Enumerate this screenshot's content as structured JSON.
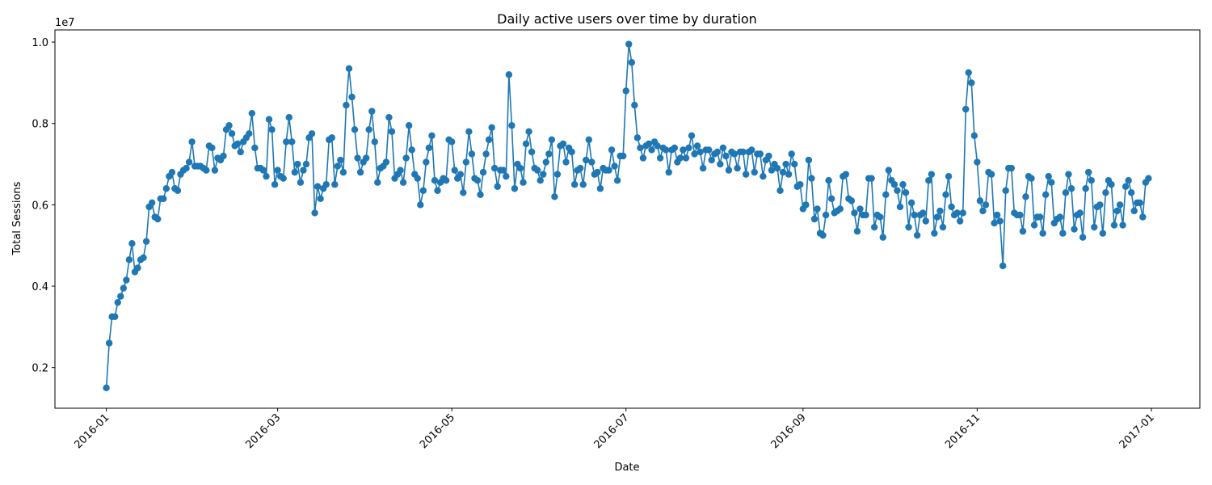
{
  "chart_data": {
    "type": "line",
    "title": "Daily active users over time by duration",
    "xlabel": "Date",
    "ylabel": "Total Sessions",
    "y_offset_text": "1e7",
    "y_scale_exponent": 7,
    "xlim": [
      "2015-12-14",
      "2017-01-18"
    ],
    "ylim": [
      1.0,
      10.3
    ],
    "x_ticks": [
      "2016-01",
      "2016-03",
      "2016-05",
      "2016-07",
      "2016-09",
      "2016-11",
      "2017-01"
    ],
    "x_tick_dates": [
      "2016-01-01",
      "2016-03-01",
      "2016-05-01",
      "2016-07-01",
      "2016-09-01",
      "2016-11-01",
      "2017-01-01"
    ],
    "y_ticks": [
      "0.2",
      "0.4",
      "0.6",
      "0.8",
      "1.0"
    ],
    "grid": false,
    "legend": false,
    "marker": "circle",
    "color": "#1f77b4",
    "series": [
      {
        "start_date": "2016-01-01",
        "step_days": 1,
        "values": [
          1.5,
          2.6,
          3.25,
          3.25,
          3.6,
          3.75,
          3.95,
          4.15,
          4.65,
          5.05,
          4.35,
          4.45,
          4.65,
          4.7,
          5.1,
          5.95,
          6.05,
          5.7,
          5.65,
          6.15,
          6.15,
          6.4,
          6.7,
          6.8,
          6.4,
          6.35,
          6.75,
          6.85,
          6.9,
          7.05,
          7.55,
          6.95,
          6.95,
          6.95,
          6.9,
          6.85,
          7.45,
          7.4,
          6.85,
          7.15,
          7.1,
          7.2,
          7.85,
          7.95,
          7.75,
          7.45,
          7.5,
          7.3,
          7.55,
          7.65,
          7.75,
          8.25,
          7.4,
          6.9,
          6.9,
          6.85,
          6.7,
          8.1,
          7.85,
          6.5,
          6.85,
          6.7,
          6.65,
          7.55,
          8.15,
          7.55,
          6.8,
          7.0,
          6.55,
          6.85,
          7.0,
          7.65,
          7.75,
          5.8,
          6.45,
          6.15,
          6.4,
          6.5,
          7.6,
          7.65,
          6.5,
          6.95,
          7.1,
          6.8,
          8.45,
          9.35,
          8.65,
          7.85,
          7.15,
          6.8,
          7.05,
          7.15,
          7.85,
          8.3,
          7.55,
          6.55,
          6.9,
          6.95,
          7.05,
          8.15,
          7.8,
          6.65,
          6.75,
          6.85,
          6.55,
          7.15,
          7.95,
          7.35,
          6.75,
          6.65,
          6.0,
          6.35,
          7.05,
          7.4,
          7.7,
          6.6,
          6.35,
          6.55,
          6.65,
          6.6,
          7.6,
          7.55,
          6.85,
          6.65,
          6.75,
          6.3,
          7.05,
          7.8,
          7.25,
          6.65,
          6.6,
          6.25,
          6.8,
          7.25,
          7.6,
          7.9,
          6.9,
          6.45,
          6.85,
          6.85,
          6.7,
          9.2,
          7.95,
          6.4,
          7.0,
          6.9,
          6.55,
          7.5,
          7.8,
          7.3,
          6.9,
          6.85,
          6.6,
          6.75,
          7.05,
          7.25,
          7.6,
          6.2,
          6.75,
          7.45,
          7.5,
          7.05,
          7.4,
          7.3,
          6.5,
          6.85,
          6.9,
          6.5,
          7.1,
          7.6,
          7.05,
          6.75,
          6.8,
          6.4,
          6.9,
          6.85,
          6.85,
          7.35,
          6.95,
          6.6,
          7.2,
          7.2,
          8.8,
          9.95,
          9.5,
          8.45,
          7.65,
          7.4,
          7.15,
          7.45,
          7.5,
          7.35,
          7.55,
          7.45,
          7.15,
          7.4,
          7.35,
          6.8,
          7.35,
          7.4,
          7.05,
          7.15,
          7.35,
          7.15,
          7.4,
          7.7,
          7.25,
          7.45,
          7.3,
          6.9,
          7.35,
          7.35,
          7.1,
          7.25,
          7.3,
          7.0,
          7.4,
          7.2,
          6.85,
          7.3,
          7.25,
          6.9,
          7.3,
          7.3,
          6.75,
          7.3,
          7.35,
          6.8,
          7.25,
          7.25,
          6.7,
          7.1,
          7.2,
          6.85,
          7.0,
          6.9,
          6.35,
          6.8,
          7.0,
          6.75,
          7.25,
          7.0,
          6.45,
          6.5,
          5.9,
          6.0,
          7.1,
          6.65,
          5.65,
          5.9,
          5.3,
          5.25,
          5.75,
          6.6,
          6.15,
          5.8,
          5.85,
          5.9,
          6.7,
          6.75,
          6.15,
          6.1,
          5.8,
          5.35,
          5.9,
          5.75,
          5.75,
          6.65,
          6.65,
          5.45,
          5.75,
          5.7,
          5.2,
          6.25,
          6.85,
          6.6,
          6.5,
          6.35,
          5.95,
          6.5,
          6.3,
          5.45,
          6.05,
          5.75,
          5.25,
          5.75,
          5.8,
          5.6,
          6.6,
          6.75,
          5.3,
          5.7,
          5.85,
          5.45,
          6.25,
          6.7,
          5.95,
          5.75,
          5.8,
          5.6,
          5.8,
          8.35,
          9.25,
          9.0,
          7.7,
          7.05,
          6.1,
          5.85,
          6.0,
          6.8,
          6.75,
          5.55,
          5.75,
          5.6,
          4.5,
          6.35,
          6.9,
          6.9,
          5.8,
          5.75,
          5.75,
          5.35,
          6.2,
          6.7,
          6.65,
          5.5,
          5.7,
          5.7,
          5.3,
          6.25,
          6.7,
          6.55,
          5.55,
          5.65,
          5.7,
          5.3,
          6.3,
          6.75,
          6.4,
          5.4,
          5.75,
          5.8,
          5.2,
          6.4,
          6.8,
          6.6,
          5.45,
          5.95,
          6.0,
          5.3,
          6.3,
          6.6,
          6.5,
          5.5,
          5.85,
          6.0,
          5.5,
          6.45,
          6.6,
          6.3,
          5.85,
          6.05,
          6.05,
          5.7,
          6.55,
          6.65
        ]
      }
    ]
  }
}
